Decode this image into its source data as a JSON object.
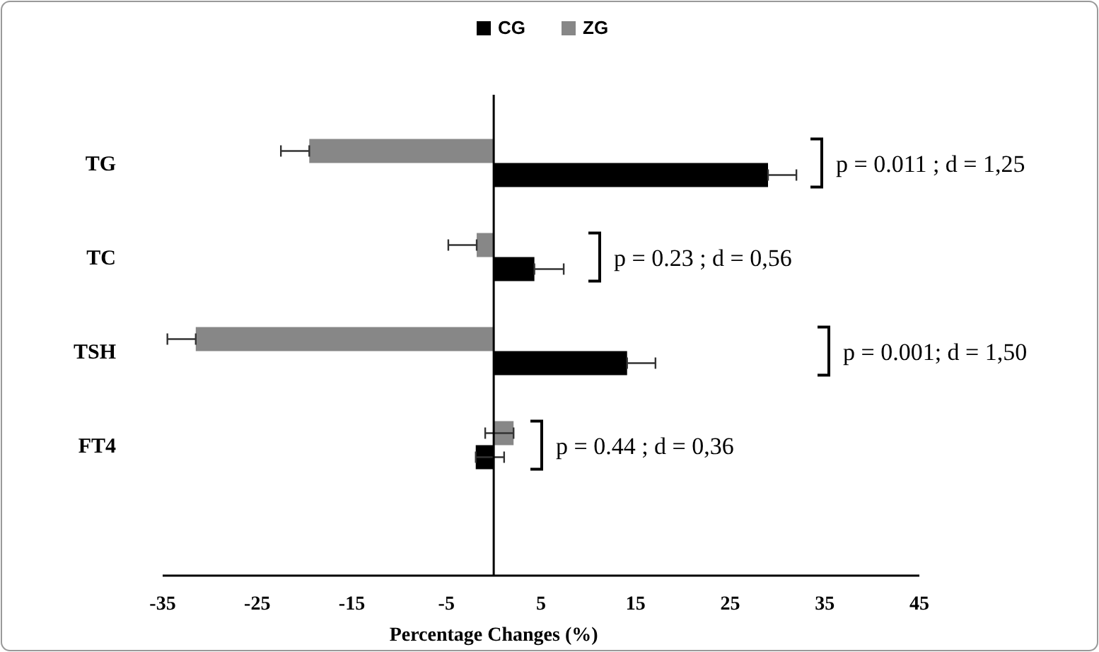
{
  "chart_data": {
    "type": "bar",
    "orientation": "horizontal",
    "xlabel": "Percentage Changes (%)",
    "categories": [
      "TG",
      "TC",
      "TSH",
      "FT4"
    ],
    "series": [
      {
        "name": "CG",
        "color": "#000000",
        "values": [
          29.0,
          4.3,
          14.1,
          -1.9
        ],
        "errors": [
          [
            29.0,
            32.0
          ],
          [
            4.3,
            7.4
          ],
          [
            14.1,
            17.1
          ],
          [
            -1.9,
            1.1
          ]
        ]
      },
      {
        "name": "ZG",
        "color": "#878787",
        "values": [
          -19.5,
          -1.8,
          -31.5,
          2.1
        ],
        "errors": [
          [
            -22.5,
            -19.5
          ],
          [
            -4.8,
            -1.8
          ],
          [
            -34.5,
            -31.5
          ],
          [
            -0.9,
            2.1
          ]
        ]
      }
    ],
    "xlim": [
      -35,
      45
    ],
    "xticks": [
      -35,
      -25,
      -15,
      -5,
      5,
      15,
      25,
      35,
      45
    ],
    "legend": "top",
    "grid": false,
    "annotations": [
      "p = 0.011 ; d = 1,25",
      "p = 0.23 ; d = 0,56",
      "p = 0.001; d = 1,50",
      "p = 0.44 ; d = 0,36"
    ]
  }
}
